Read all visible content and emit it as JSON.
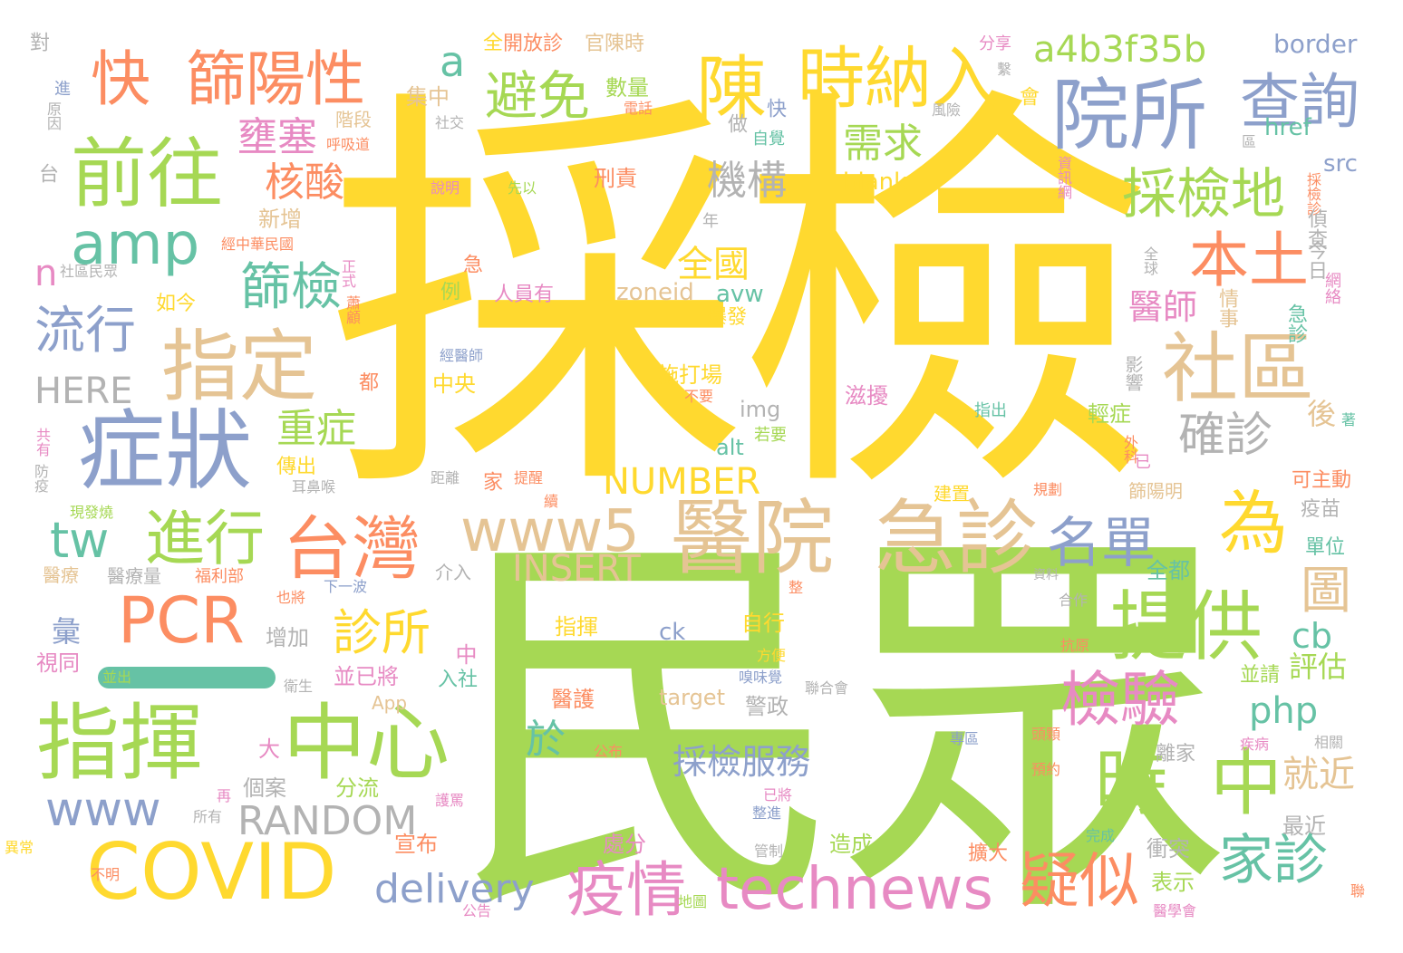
{
  "words": {
    "w_caijian": "採檢",
    "w_minzhong": "民眾",
    "w_yuansuo": "院所",
    "w_chaxun": "查詢",
    "w_kuai_big": "快",
    "w_shaiyangxing": "篩陽性",
    "w_chen": "陳",
    "w_shinaru": "時納入",
    "w_a4b3f35b": "a4b3f35b",
    "w_a": "a",
    "w_qianwang": "前往",
    "w_amp": "amp",
    "w_zhiding": "指定",
    "w_zhengzhuang": "症狀",
    "w_liuxing": "流行",
    "w_shequ": "社區",
    "w_caijiandi": "採檢地",
    "w_bentu": "本土",
    "w_bimian": "避免",
    "w_yongse": "壅塞",
    "w_hesuan": "核酸",
    "w_shaijian": "篩檢",
    "w_xuqiu": "需求",
    "w_jigou": "機構",
    "w_quanguo": "全國",
    "w_HERE": "HERE",
    "w_n": "n",
    "w_zhongzheng": "重症",
    "w_jinxing": "進行",
    "w_taiwan": "台灣",
    "w_www5": "www5",
    "w_yiyuan": "醫院",
    "w_jizhen": "急診",
    "w_wei": "為",
    "w_tw": "tw",
    "w_PCR": "PCR",
    "w_mingdan": "名單",
    "w_tigong": "提供",
    "w_jianyan": "檢驗",
    "w_zhihui": "指揮",
    "w_zhongxin": "中心",
    "w_shi": "時",
    "w_zhong": "中",
    "w_COVID": "COVID",
    "w_www": "www",
    "w_RANDOM": "RANDOM",
    "w_yiqing": "疫情",
    "w_technews": "technews",
    "w_yisi": "疑似",
    "w_jiazhen": "家診",
    "w_delivery": "delivery",
    "w_zhensuo": "診所",
    "w_caijianfuwu": "採檢服務",
    "w_NUMBER": "NUMBER",
    "w_INSERT": "INSERT",
    "w_quezhen": "確診",
    "w_tu": "圖",
    "w_php": "php",
    "w_cb": "cb",
    "w_yushi": "醫師",
    "w_jiujin": "就近",
    "w_yu": "於",
    "w_border": "border",
    "w_href": "href",
    "w_src": "src",
    "w_blank": "blank",
    "w_kuaizhen": "快",
    "w_zuo": "做",
    "w_zhongxin_small": "集中",
    "w_shuliang": "數量",
    "w_kaifangzhen": "開放診",
    "w_guanchenshi": "官陳時",
    "w_fenxiang": "分享",
    "w_jieduan": "階段",
    "w_xingze": "刑責",
    "w_dui": "對",
    "w_tai": "台",
    "w_jin": "進",
    "w_yuanyin": "原因",
    "w_xinzeng": "新增",
    "w_jia": "家",
    "w_ji": "急",
    "w_li": "例",
    "w_renyuanyou": "人員有",
    "w_zoneid": "zoneid",
    "w_avw": "avw",
    "w_baofa": "爆發",
    "w_shidachang": "施打場",
    "w_zhongyang": "中央",
    "w_dou": "都",
    "w_img": "img",
    "w_alt": "alt",
    "w_buyao": "不要",
    "w_ruoyao": "若要",
    "w_zirao": "滋擾",
    "w_chuanchu": "傳出",
    "w_hou": "後",
    "w_jinri": "今日",
    "w_zhencha": "偵查",
    "w_qingzheng": "情事",
    "w_jizhen_small": "急診",
    "w_yingxiang": "影響",
    "w_qingzheng2": "輕症",
    "w_kezhudong": "可主動",
    "w_shaiyangming": "篩陽明",
    "w_yimiao": "疫苗",
    "w_danwei": "單位",
    "w_quandou": "全都",
    "w_pinggu": "評估",
    "w_bingqing": "並請",
    "w_lijia": "離家",
    "w_zuijin": "最近",
    "w_chongtu": "衝突",
    "w_biaoshi": "表示",
    "w_xuanbu": "宣布",
    "w_chucheng": "處分",
    "w_zaocheng": "造成",
    "w_kuoda": "擴大",
    "w_jingzheng": "警政",
    "w_zixing": "自行",
    "w_ck": "ck",
    "w_target": "target",
    "w_yihu": "醫護",
    "w_zhihui_small": "指揮",
    "w_geian": "個案",
    "w_fenliu": "分流",
    "w_da": "大",
    "w_zengjia": "增加",
    "w_zhong2": "中",
    "w_bingyijiang": "並已將",
    "w_ruzhe": "入社",
    "w_shitong": "視同",
    "w_hui": "彙",
    "w_App": "App",
    "w_yiliao": "醫療",
    "w_yiliaoliang": "醫療量",
    "w_fulibu": "福利部",
    "w_xiayibo": "下一波",
    "w_jieru": "介入",
    "w_bingchu": "並出",
    "w_weisheng": "衛生",
    "w_yejiang": "也將",
    "w_xiawei": "嗅味覺",
    "w_lianhehui": "聯合會",
    "w_fangbian": "方便",
    "w_yijiang": "已將",
    "w_zhengjin": "整進",
    "w_guanzhi": "管制",
    "w_ditu": "地圖",
    "w_gonggao": "公告",
    "w_gongbu": "公布",
    "w_huji": "護罵",
    "w_zai": "再",
    "w_suoyou": "所有",
    "w_yichang": "異常",
    "w_buming": "不明",
    "w_yixue": "醫學會",
    "w_wancheng": "完成",
    "w_yuyue": "預約",
    "w_touquan": "頭顆",
    "w_zhuanqu": "專區",
    "w_jibing": "疾病",
    "w_xiangguan": "相關",
    "w_lian": "聯",
    "w_hezuo": "合作",
    "w_kangyuan": "抗原",
    "w_ziliao": "資料",
    "w_zheng": "整",
    "w_jianzhi": "建置",
    "w_guihua": "規劃",
    "w_waike": "外科",
    "w_yi": "已",
    "w_zhuo": "著",
    "w_zhichu": "指出",
    "w_juli": "距離",
    "w_tixing": "提醒",
    "w_xu": "續",
    "w_erbihou": "耳鼻喉",
    "w_xianfashao": "現發燒",
    "w_fangyi": "防疫",
    "w_gongyou": "共有",
    "w_jingyishi": "經醫師",
    "w_zhengshi": "正式",
    "w_rugu": "蕭顧",
    "w_jinghua": "經中華民國",
    "w_shequminzhong": "社區民眾",
    "w_ruyin": "如今",
    "w_shuoming": "說明",
    "w_xianyi": "先以",
    "w_zijue": "自覺",
    "w_dianhua": "電話",
    "w_shejiao": "社交",
    "w_huxidao": "呼吸道",
    "w_fengxian": "風險",
    "w_hui2": "會",
    "w_xi": "繫",
    "w_qu": "區",
    "w_zixunwang": "資訊網",
    "w_caijianzhen": "採檢診",
    "w_quanqiu": "全球",
    "w_wangluo": "網絡",
    "w_quan": "全",
    "w_nian": "年"
  }
}
